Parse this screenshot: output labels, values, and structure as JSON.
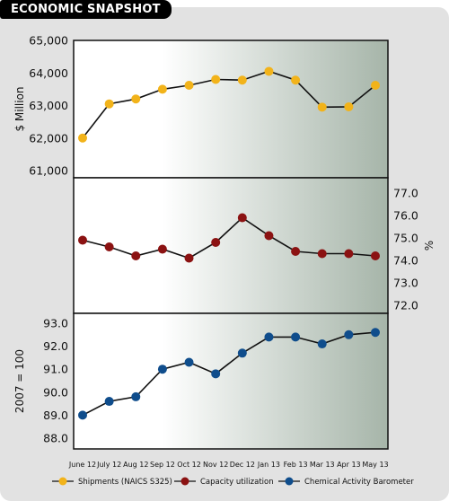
{
  "header": {
    "title": "ECONOMIC SNAPSHOT"
  },
  "colors": {
    "card_bg": "#e2e2e2",
    "shipments": "#f2b31a",
    "capacity": "#8b1212",
    "cab": "#0f4d8c",
    "line": "#111111",
    "panel_right": "#a6b5a9"
  },
  "chart_data": {
    "type": "line",
    "categories": [
      "June 12",
      "July 12",
      "Aug 12",
      "Sep 12",
      "Oct 12",
      "Nov 12",
      "Dec 12",
      "Jan 13",
      "Feb 13",
      "Mar 13",
      "Apr 13",
      "May 13"
    ],
    "panels": [
      {
        "series_name": "Shipments (NAICS S325)",
        "ylabel": "$ Million",
        "yaxis_side": "left",
        "ylim": [
          61000,
          65000
        ],
        "ticks": [
          "61,000",
          "62,000",
          "63,000",
          "64,000",
          "65,000"
        ],
        "values": [
          62000,
          63050,
          63200,
          63500,
          63620,
          63800,
          63780,
          64050,
          63780,
          62950,
          62960,
          63620
        ]
      },
      {
        "series_name": "Capacity utilization",
        "ylabel": "%",
        "yaxis_side": "right",
        "ylim": [
          72.0,
          77.0
        ],
        "ticks": [
          "72.0",
          "73.0",
          "74.0",
          "75.0",
          "76.0",
          "77.0"
        ],
        "values": [
          74.9,
          74.6,
          74.2,
          74.5,
          74.1,
          74.8,
          75.9,
          75.1,
          74.4,
          74.3,
          74.3,
          74.2
        ]
      },
      {
        "series_name": "Chemical Activity Barometer",
        "ylabel": "2007 = 100",
        "yaxis_side": "left",
        "ylim": [
          88.0,
          93.0
        ],
        "ticks": [
          "88.0",
          "89.0",
          "90.0",
          "91.0",
          "92.0",
          "93.0"
        ],
        "values": [
          89.0,
          89.6,
          89.8,
          91.0,
          91.3,
          90.8,
          91.7,
          92.4,
          92.4,
          92.1,
          92.5,
          92.6
        ]
      }
    ],
    "legend": [
      {
        "label": "Shipments (NAICS S325)",
        "color_key": "shipments"
      },
      {
        "label": "Capacity utilization",
        "color_key": "capacity"
      },
      {
        "label": "Chemical Activity Barometer",
        "color_key": "cab"
      }
    ]
  }
}
